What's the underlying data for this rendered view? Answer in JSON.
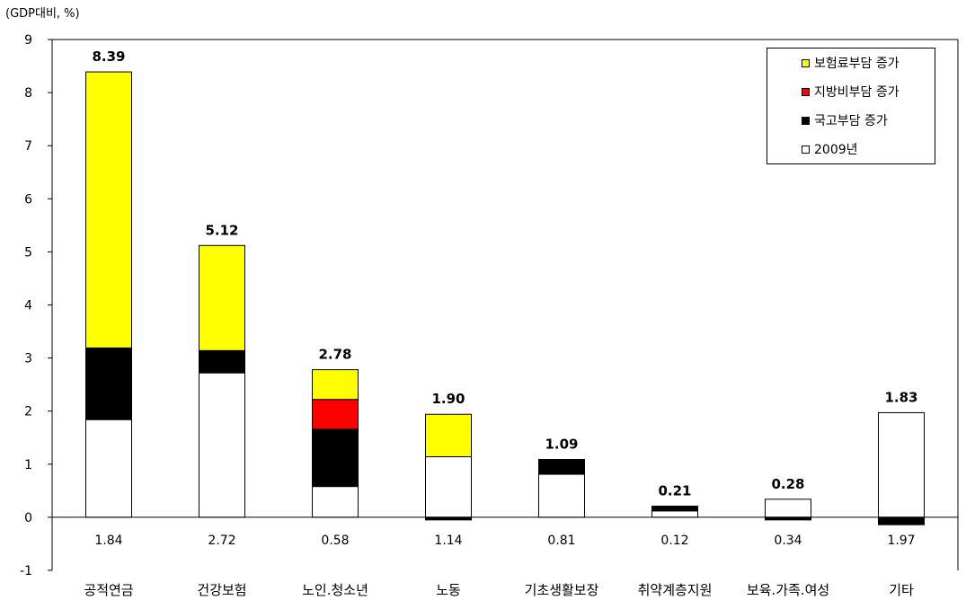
{
  "chart_data": {
    "type": "bar",
    "stacked": true,
    "unit_label": "(GDP대비, %)",
    "ylim": [
      -1,
      9
    ],
    "y_ticks": [
      "-1",
      "0",
      "1",
      "2",
      "3",
      "4",
      "5",
      "6",
      "7",
      "8",
      "9"
    ],
    "grid": false,
    "legend_position": "top-right",
    "categories": [
      "공적연금",
      "건강보험",
      "노인.청소년",
      "노동",
      "기초생활보장",
      "취약계층지원",
      "보육.가족.여성",
      "기타"
    ],
    "series": [
      {
        "name": "2009년",
        "color": "#ffffff",
        "values": [
          1.84,
          2.72,
          0.58,
          1.14,
          0.81,
          0.12,
          0.34,
          1.97
        ]
      },
      {
        "name": "국고부담 증가",
        "color": "#000000",
        "values": [
          1.35,
          0.42,
          1.08,
          -0.05,
          0.27,
          0.09,
          -0.05,
          -0.14
        ]
      },
      {
        "name": "지방비부담 증가",
        "color": "#ff0000",
        "values": [
          0,
          0,
          0.56,
          0,
          0.01,
          0,
          0,
          0
        ]
      },
      {
        "name": "보험료부담 증가",
        "color": "#ffff00",
        "values": [
          5.2,
          1.98,
          0.56,
          0.8,
          0,
          0,
          0,
          0
        ]
      }
    ],
    "totals": [
      "8.39",
      "5.12",
      "2.78",
      "1.90",
      "1.09",
      "0.21",
      "0.28",
      "1.83"
    ],
    "base_labels": [
      "1.84",
      "2.72",
      "0.58",
      "1.14",
      "0.81",
      "0.12",
      "0.34",
      "1.97"
    ]
  },
  "legend": {
    "items": [
      {
        "label": "보험료부담 증가",
        "color": "#ffff00"
      },
      {
        "label": "지방비부담 증가",
        "color": "#ff0000"
      },
      {
        "label": "국고부담 증가",
        "color": "#000000"
      },
      {
        "label": "2009년",
        "color": "#ffffff"
      }
    ]
  }
}
